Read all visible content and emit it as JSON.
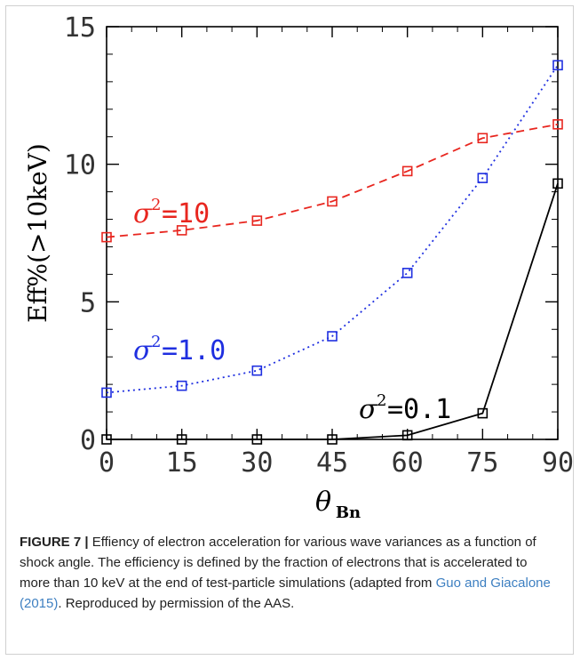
{
  "chart_data": {
    "type": "line",
    "title": "",
    "xlabel": "θ",
    "xlabel_sub": "Bn",
    "ylabel": "Eff%(>10keV)",
    "xlim": [
      0,
      90
    ],
    "ylim": [
      0,
      15
    ],
    "x_ticks": [
      0,
      15,
      30,
      45,
      60,
      75,
      90
    ],
    "y_ticks": [
      0,
      5,
      10,
      15
    ],
    "x": [
      0,
      15,
      30,
      45,
      60,
      75,
      90
    ],
    "grid": false,
    "legend": "inline labels",
    "series": [
      {
        "name": "σ²=10",
        "label_text": "σ",
        "label_sup": "2",
        "label_value": "=10",
        "values": [
          7.35,
          7.6,
          7.95,
          8.65,
          9.75,
          10.95,
          11.45
        ],
        "color": "#e8261f",
        "style": "dashed"
      },
      {
        "name": "σ²=1.0",
        "label_text": "σ",
        "label_sup": "2",
        "label_value": "=1.0",
        "values": [
          1.7,
          1.95,
          2.5,
          3.75,
          6.05,
          9.5,
          13.6
        ],
        "color": "#1f2fe0",
        "style": "dotted"
      },
      {
        "name": "σ²=0.1",
        "label_text": "σ",
        "label_sup": "2",
        "label_value": "=0.1",
        "values": [
          0.0,
          0.0,
          0.0,
          0.0,
          0.15,
          0.95,
          9.3
        ],
        "color": "#000000",
        "style": "solid"
      }
    ]
  },
  "caption": {
    "label": "FIGURE 7 |",
    "text_before": " Effiency of electron acceleration for various wave variances as a function of shock angle. The efficiency is defined by the fraction of electrons that is accelerated to more than 10 keV at the end of test-particle simulations (adapted from ",
    "citation": "Guo and Giacalone (2015)",
    "text_after": ". Reproduced by permission of the AAS."
  }
}
